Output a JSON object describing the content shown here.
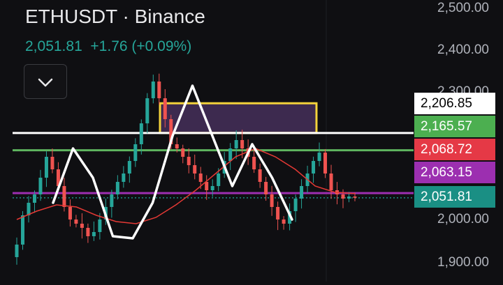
{
  "header": {
    "symbol": "ETHUSDT",
    "separator": " · ",
    "exchange": "Binance",
    "last_price": "2,051.81",
    "change": "+1.76",
    "change_pct": "(+0.09%)"
  },
  "colors": {
    "background": "#0f0f12",
    "up": "#26a69a",
    "down": "#ef5350",
    "ma": "#e53935",
    "pattern": "#ffffff",
    "box_fill": "#3d2a4f",
    "box_border": "#f4d33b",
    "level_white": "#ffffff",
    "level_green": "#5fb55f",
    "level_purple": "#9c2fb0",
    "dotted": "#1c8f86"
  },
  "price_axis": {
    "labels": [
      "2,500.00",
      "2,400.00",
      "2,300.00",
      "2,000.00",
      "1,900.00"
    ]
  },
  "price_tags": [
    {
      "label": "2,206.85",
      "bg": "#ffffff",
      "fg": "#000000"
    },
    {
      "label": "2,165.57",
      "bg": "#4caf50",
      "fg": "#ffffff"
    },
    {
      "label": "2,068.72",
      "bg": "#e53946",
      "fg": "#ffffff"
    },
    {
      "label": "2,063.15",
      "bg": "#9c2fb0",
      "fg": "#ffffff"
    },
    {
      "label": "2,051.81",
      "bg": "#1a8f84",
      "fg": "#ffffff"
    }
  ],
  "chart_data": {
    "type": "candlestick",
    "ylim": [
      1870,
      2530
    ],
    "horizontal_levels": [
      {
        "value": 2206.85,
        "color": "#ffffff"
      },
      {
        "value": 2165.57,
        "color": "#5fb55f"
      },
      {
        "value": 2063.15,
        "color": "#9c2fb0"
      },
      {
        "value": 2051.81,
        "color": "#1c8f86",
        "style": "dotted"
      }
    ],
    "zone": {
      "top": 2278,
      "bottom": 2207
    },
    "pattern_line": [
      2040,
      2170,
      2100,
      1960,
      1955,
      2040,
      2200,
      2320,
      2200,
      2080,
      2180,
      2100,
      2000
    ],
    "moving_average": [
      2000,
      2020,
      2035,
      2030,
      2010,
      1995,
      1990,
      2005,
      2035,
      2070,
      2110,
      2150,
      2170,
      2150,
      2120,
      2080,
      2065,
      2062
    ],
    "candle_closes": [
      1940,
      2010,
      2040,
      2060,
      2100,
      2150,
      2120,
      2080,
      2030,
      2000,
      1990,
      1980,
      1960,
      1970,
      2000,
      2030,
      2060,
      2090,
      2110,
      2140,
      2180,
      2230,
      2290,
      2330,
      2290,
      2240,
      2180,
      2170,
      2150,
      2130,
      2110,
      2090,
      2070,
      2080,
      2110,
      2140,
      2170,
      2190,
      2170,
      2150,
      2120,
      2090,
      2060,
      2030,
      2000,
      1990,
      2020,
      2050,
      2080,
      2110,
      2140,
      2160,
      2110,
      2070,
      2060,
      2050,
      2055,
      2052
    ]
  }
}
